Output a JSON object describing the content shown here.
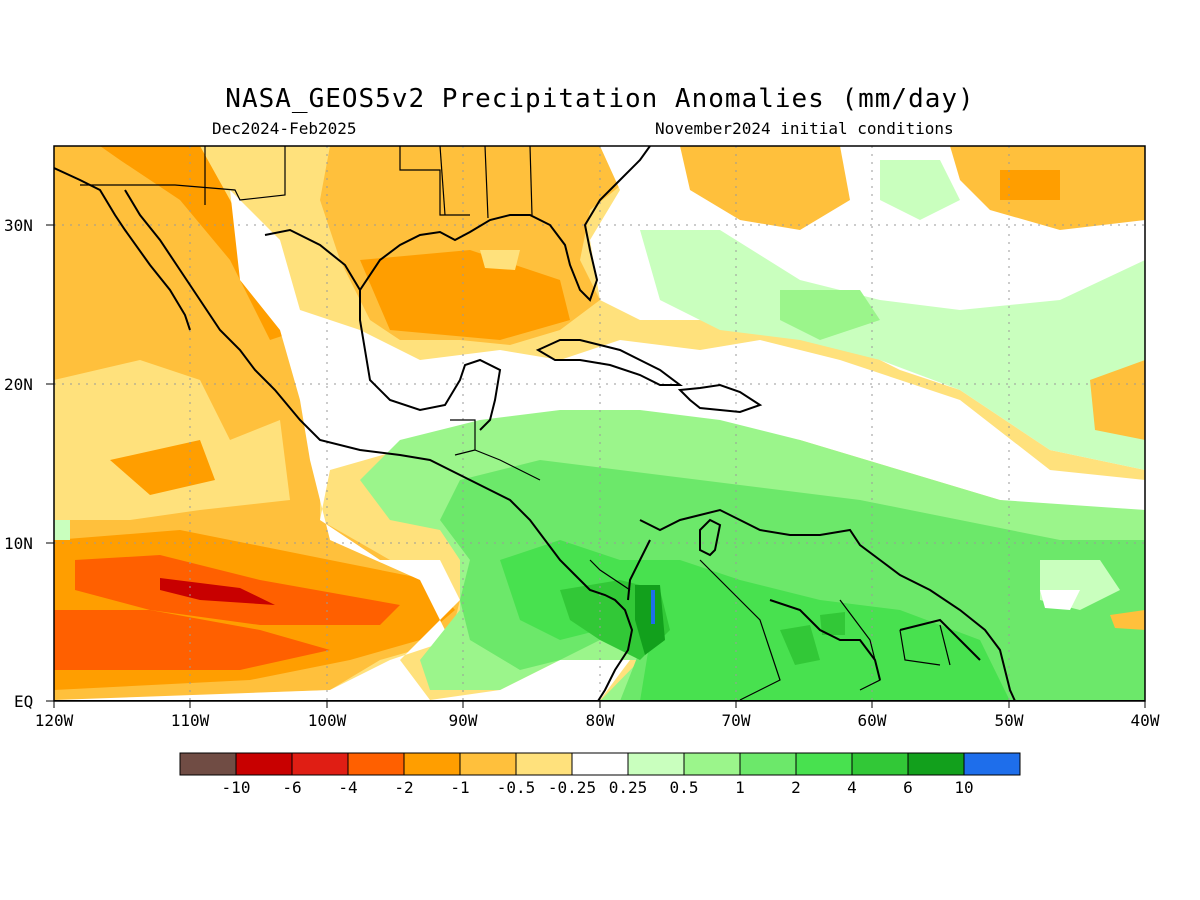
{
  "title": "NASA_GEOS5v2 Precipitation Anomalies (mm/day)",
  "subtitle_left": "Dec2024-Feb2025",
  "subtitle_right": "November2024 initial conditions",
  "lat_labels": [
    "30N",
    "20N",
    "10N",
    "EQ"
  ],
  "lon_labels": [
    "120W",
    "110W",
    "100W",
    "90W",
    "80W",
    "70W",
    "60W",
    "50W",
    "40W"
  ],
  "colorbar": {
    "colors": [
      "#704c44",
      "#c80000",
      "#e01e14",
      "#ff6000",
      "#ff9e00",
      "#ffc03c",
      "#ffe17c",
      "#ffffff",
      "#c9ffbe",
      "#9bf58b",
      "#6ce86a",
      "#48e14f",
      "#32c837",
      "#12a01c",
      "#1e6eeb"
    ],
    "tick_labels": [
      "-10",
      "-6",
      "-4",
      "-2",
      "-1",
      "-0.5",
      "-0.25",
      "0.25",
      "0.5",
      "1",
      "2",
      "4",
      "6",
      "10"
    ]
  },
  "chart_data": {
    "type": "heatmap",
    "title": "NASA_GEOS5v2 Precipitation Anomalies (mm/day)",
    "period": "Dec2024-Feb2025",
    "initial_conditions": "November2024 initial conditions",
    "lon_range": [
      -120,
      -40
    ],
    "lat_range": [
      0,
      35
    ],
    "grid": true,
    "levels": [
      -10,
      -6,
      -4,
      -2,
      -1,
      -0.5,
      -0.25,
      0.25,
      0.5,
      1,
      2,
      4,
      6,
      10
    ]
  }
}
